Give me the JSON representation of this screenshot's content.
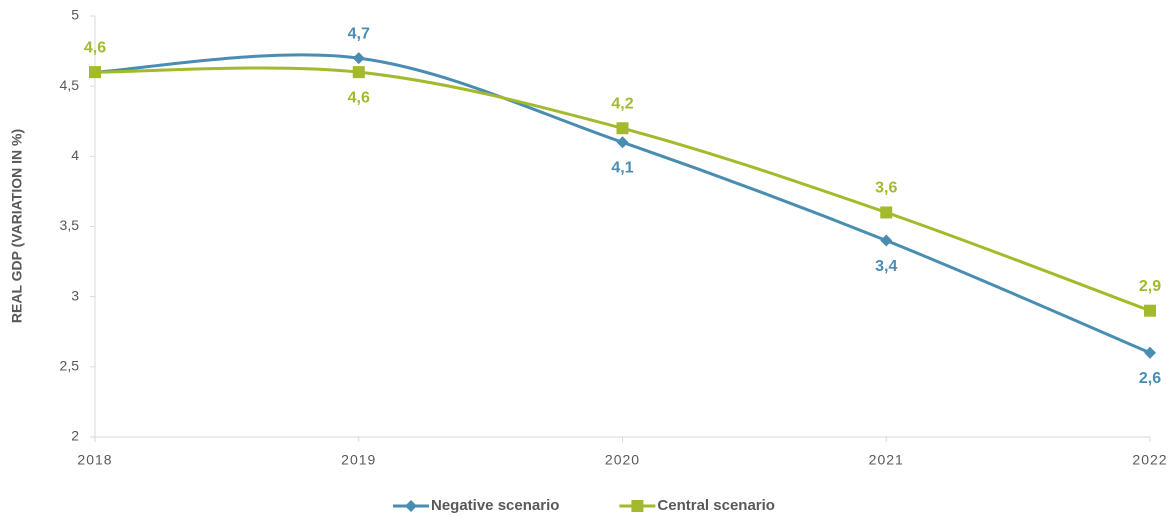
{
  "chart_data": {
    "type": "line",
    "y_label": "REAL GDP (VARIATION IN %)",
    "categories": [
      "2018",
      "2019",
      "2020",
      "2021",
      "2022"
    ],
    "series": [
      {
        "name": "Negative scenario",
        "color": "#4a8db2",
        "marker": "diamond",
        "values": [
          4.6,
          4.7,
          4.1,
          3.4,
          2.6
        ],
        "value_labels": [
          null,
          "4,7",
          "4,1",
          "3,4",
          "2,6"
        ]
      },
      {
        "name": "Central scenario",
        "color": "#a4b92b",
        "marker": "square",
        "values": [
          4.6,
          4.6,
          4.2,
          3.6,
          2.9
        ],
        "value_labels": [
          "4,6",
          "4,6",
          "4,2",
          "3,6",
          "2,9"
        ]
      }
    ],
    "ylim": [
      2,
      5
    ],
    "yticks": [
      2,
      {
        "value": 2.5,
        "label": "2,5"
      },
      3,
      {
        "value": 3.5,
        "label": "3,5"
      },
      4,
      {
        "value": 4.5,
        "label": "4,5"
      },
      5
    ],
    "smooth": true,
    "legend": "bottom"
  }
}
